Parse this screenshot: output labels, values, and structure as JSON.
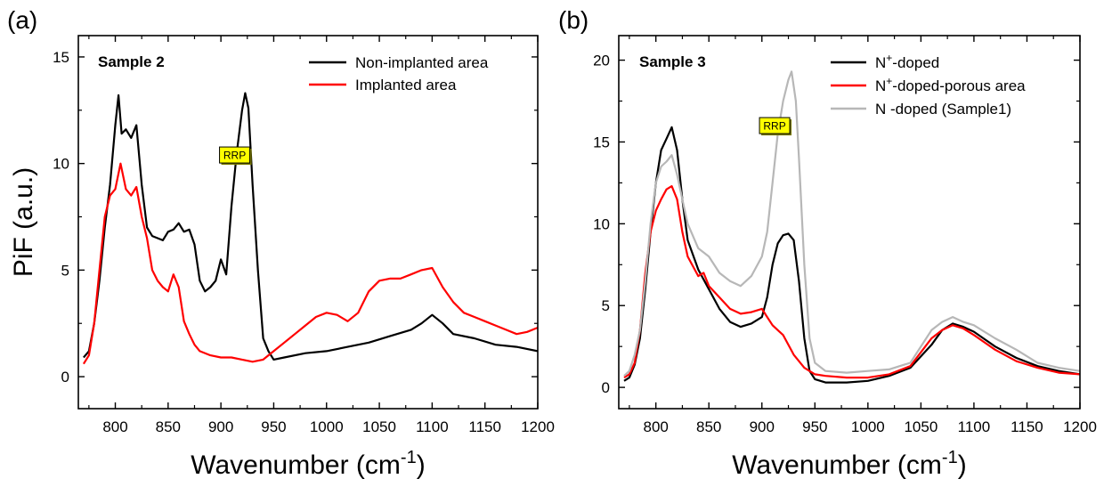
{
  "chart_data": [
    {
      "panel_label": "(a)",
      "type": "line",
      "sample_label": "Sample 2",
      "xlabel": "Wavenumber (cm",
      "xlabel_sup": "-1",
      "xlabel_tail": ")",
      "ylabel": "PiF (a.u.)",
      "xlim": [
        765,
        1200
      ],
      "ylim": [
        -1.5,
        16
      ],
      "xticks": [
        800,
        850,
        900,
        950,
        1000,
        1050,
        1100,
        1150,
        1200
      ],
      "yticks": [
        0,
        5,
        10,
        15
      ],
      "legend_position": "top-right",
      "annotation": {
        "text": "RRP",
        "x": 913,
        "y": 10.4
      },
      "series": [
        {
          "name": "Non-implanted area",
          "color": "#000000",
          "x": [
            770,
            775,
            780,
            785,
            790,
            795,
            800,
            803,
            806,
            810,
            815,
            820,
            825,
            830,
            835,
            840,
            845,
            850,
            855,
            860,
            865,
            870,
            875,
            880,
            885,
            890,
            895,
            900,
            905,
            910,
            915,
            920,
            923,
            926,
            930,
            935,
            940,
            945,
            950,
            960,
            980,
            1000,
            1020,
            1040,
            1060,
            1080,
            1090,
            1100,
            1110,
            1120,
            1140,
            1160,
            1180,
            1200
          ],
          "y": [
            0.9,
            1.2,
            2.5,
            4.5,
            7.0,
            9.0,
            11.8,
            13.2,
            11.4,
            11.6,
            11.2,
            11.8,
            9.0,
            7.0,
            6.6,
            6.5,
            6.4,
            6.8,
            6.9,
            7.2,
            6.8,
            6.9,
            6.2,
            4.5,
            4.0,
            4.2,
            4.5,
            5.5,
            4.8,
            8.0,
            10.5,
            12.5,
            13.3,
            12.6,
            9.0,
            5.0,
            1.8,
            1.2,
            0.8,
            0.9,
            1.1,
            1.2,
            1.4,
            1.6,
            1.9,
            2.2,
            2.5,
            2.9,
            2.5,
            2.0,
            1.8,
            1.5,
            1.4,
            1.2
          ]
        },
        {
          "name": "Implanted area",
          "color": "#ff0000",
          "x": [
            770,
            775,
            780,
            785,
            790,
            795,
            800,
            805,
            810,
            815,
            820,
            825,
            830,
            835,
            840,
            845,
            850,
            855,
            860,
            865,
            870,
            875,
            880,
            890,
            900,
            910,
            920,
            930,
            940,
            950,
            960,
            970,
            980,
            990,
            1000,
            1010,
            1020,
            1030,
            1040,
            1050,
            1060,
            1070,
            1080,
            1090,
            1100,
            1110,
            1120,
            1130,
            1140,
            1150,
            1160,
            1170,
            1180,
            1190,
            1200
          ],
          "y": [
            0.6,
            1.0,
            2.5,
            5.0,
            7.5,
            8.5,
            8.8,
            10.0,
            8.8,
            8.5,
            8.9,
            7.5,
            6.5,
            5.0,
            4.5,
            4.2,
            4.0,
            4.8,
            4.2,
            2.6,
            2.0,
            1.5,
            1.2,
            1.0,
            0.9,
            0.9,
            0.8,
            0.7,
            0.8,
            1.2,
            1.6,
            2.0,
            2.4,
            2.8,
            3.0,
            2.9,
            2.6,
            3.0,
            4.0,
            4.5,
            4.6,
            4.6,
            4.8,
            5.0,
            5.1,
            4.2,
            3.5,
            3.0,
            2.8,
            2.6,
            2.4,
            2.2,
            2.0,
            2.1,
            2.3
          ]
        }
      ]
    },
    {
      "panel_label": "(b)",
      "type": "line",
      "sample_label": "Sample 3",
      "xlabel": "Wavenumber (cm",
      "xlabel_sup": "-1",
      "xlabel_tail": ")",
      "ylabel": "",
      "xlim": [
        765,
        1200
      ],
      "ylim": [
        -1.3,
        21.5
      ],
      "xticks": [
        800,
        850,
        900,
        950,
        1000,
        1050,
        1100,
        1150,
        1200
      ],
      "yticks": [
        0,
        5,
        10,
        15,
        20
      ],
      "legend_position": "top-right",
      "annotation": {
        "text": "RRP",
        "x": 912,
        "y": 16.0
      },
      "series": [
        {
          "name": "N",
          "name_sup": "+",
          "name_tail": "-doped",
          "color": "#000000",
          "x": [
            770,
            775,
            780,
            785,
            790,
            795,
            800,
            805,
            810,
            815,
            820,
            825,
            830,
            840,
            850,
            860,
            870,
            880,
            890,
            900,
            905,
            910,
            915,
            920,
            925,
            930,
            935,
            940,
            945,
            950,
            960,
            980,
            1000,
            1020,
            1040,
            1060,
            1070,
            1080,
            1090,
            1100,
            1120,
            1140,
            1160,
            1180,
            1200
          ],
          "y": [
            0.4,
            0.6,
            1.4,
            3.0,
            6.0,
            9.5,
            12.5,
            14.5,
            15.2,
            15.9,
            14.5,
            11.5,
            9.0,
            7.2,
            6.0,
            4.8,
            4.0,
            3.7,
            3.9,
            4.3,
            5.5,
            7.5,
            8.8,
            9.3,
            9.4,
            9.0,
            6.5,
            3.0,
            1.0,
            0.5,
            0.3,
            0.3,
            0.4,
            0.7,
            1.2,
            2.6,
            3.5,
            3.9,
            3.7,
            3.4,
            2.5,
            1.8,
            1.3,
            1.0,
            0.8
          ]
        },
        {
          "name": "N",
          "name_sup": "+",
          "name_tail": "-doped-porous area",
          "color": "#ff0000",
          "x": [
            770,
            775,
            780,
            785,
            790,
            795,
            800,
            805,
            810,
            815,
            820,
            825,
            830,
            840,
            845,
            850,
            860,
            870,
            880,
            890,
            900,
            905,
            910,
            915,
            920,
            930,
            940,
            950,
            960,
            980,
            1000,
            1020,
            1040,
            1060,
            1070,
            1080,
            1090,
            1100,
            1120,
            1140,
            1160,
            1180,
            1200
          ],
          "y": [
            0.6,
            0.8,
            1.5,
            3.5,
            7.0,
            9.5,
            10.8,
            11.5,
            12.1,
            12.3,
            11.5,
            9.5,
            8.0,
            6.8,
            7.0,
            6.2,
            5.5,
            4.8,
            4.5,
            4.6,
            4.8,
            4.3,
            3.8,
            3.5,
            3.2,
            2.0,
            1.2,
            0.8,
            0.7,
            0.6,
            0.6,
            0.8,
            1.3,
            3.0,
            3.5,
            3.8,
            3.6,
            3.2,
            2.3,
            1.6,
            1.2,
            0.9,
            0.8
          ]
        },
        {
          "name": "N -doped (Sample1)",
          "color": "#b7b7b7",
          "x": [
            770,
            775,
            780,
            785,
            790,
            795,
            800,
            805,
            810,
            815,
            820,
            825,
            830,
            840,
            850,
            860,
            870,
            880,
            890,
            900,
            905,
            910,
            915,
            920,
            925,
            928,
            932,
            935,
            940,
            945,
            950,
            960,
            980,
            1000,
            1020,
            1040,
            1060,
            1070,
            1080,
            1090,
            1100,
            1120,
            1140,
            1160,
            1180,
            1200
          ],
          "y": [
            0.7,
            1.0,
            2.0,
            3.5,
            6.5,
            10.0,
            12.5,
            13.5,
            13.8,
            14.2,
            13.0,
            11.5,
            10.0,
            8.5,
            8.0,
            7.0,
            6.5,
            6.2,
            6.8,
            8.0,
            9.5,
            12.5,
            15.5,
            17.5,
            18.8,
            19.3,
            17.5,
            14.0,
            7.5,
            3.0,
            1.5,
            1.0,
            0.9,
            1.0,
            1.1,
            1.5,
            3.5,
            4.0,
            4.3,
            4.0,
            3.8,
            3.0,
            2.3,
            1.5,
            1.2,
            1.0
          ]
        }
      ]
    }
  ]
}
